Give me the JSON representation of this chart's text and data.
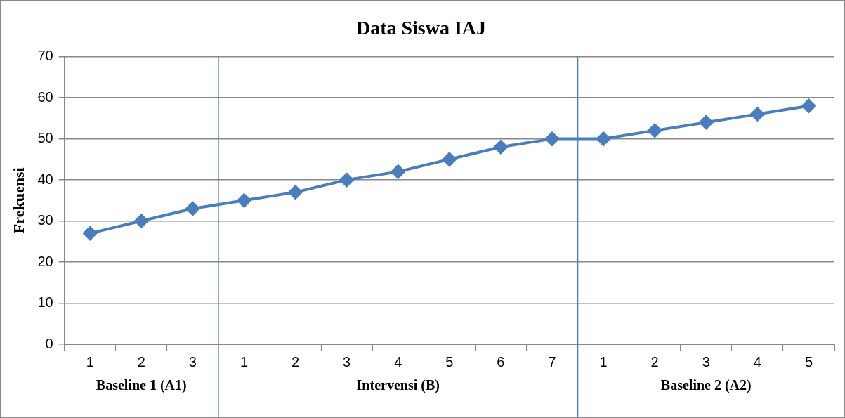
{
  "chart_data": {
    "type": "line",
    "title": "Data Siswa IAJ",
    "ylabel": "Frekuensi",
    "categories": [
      "1",
      "2",
      "3",
      "1",
      "2",
      "3",
      "4",
      "5",
      "6",
      "7",
      "1",
      "2",
      "3",
      "4",
      "5"
    ],
    "series": [
      {
        "color": "#4a7ebb",
        "values": [
          27,
          30,
          33,
          35,
          37,
          40,
          42,
          45,
          48,
          50,
          50,
          52,
          54,
          56,
          58
        ]
      }
    ],
    "ylim": [
      0,
      70
    ],
    "yticks": [
      0,
      10,
      20,
      30,
      40,
      50,
      60,
      70
    ],
    "annotations": [
      "Baseline 1 (A1)",
      "Intervensi (B)",
      "Baseline 2 (A2)"
    ],
    "grid": "y",
    "marker": "diamond",
    "line_style": "solid",
    "legend": false
  }
}
